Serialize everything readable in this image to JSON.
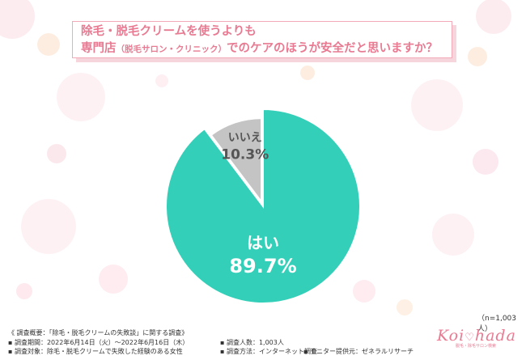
{
  "title": {
    "line1": "除毛・脱毛クリームを使うよりも",
    "line2_pre": "専門店",
    "line2_small": "（脱毛サロン・クリニック）",
    "line2_post": "でのケアのほうが安全だと思いますか？"
  },
  "chart_data": {
    "type": "pie",
    "title": "除毛・脱毛クリームを使うよりも専門店（脱毛サロン・クリニック）でのケアのほうが安全だと思いますか？",
    "slices": [
      {
        "label": "はい",
        "value": 89.7,
        "display": "89.7%",
        "color": "#33cfb8",
        "text_color": "#ffffff"
      },
      {
        "label": "いいえ",
        "value": 10.3,
        "display": "10.3%",
        "color": "#c4c4c4",
        "text_color": "#555555"
      }
    ],
    "start": "12 o'clock, clockwise"
  },
  "sample_size": "（n=1,003人）",
  "footer": {
    "heading": "《 調査概要：「除毛・脱毛クリームの失敗談」に関する調査》",
    "period": "▪ 調査期間：2022年6月14日（火）～2022年6月16日（木）",
    "count": "▪ 調査人数：1,003人",
    "target": "▪ 調査対象：除毛・脱毛クリームで失敗した経験のある女性",
    "method": "▪ 調査方法：インターネット調査",
    "provider": "▪ モニター提供元：ゼネラルリサーチ"
  },
  "logo": {
    "left": "Koi",
    "heart": "♡",
    "right": "hada",
    "tagline": "脱毛・除毛サロン検索"
  }
}
